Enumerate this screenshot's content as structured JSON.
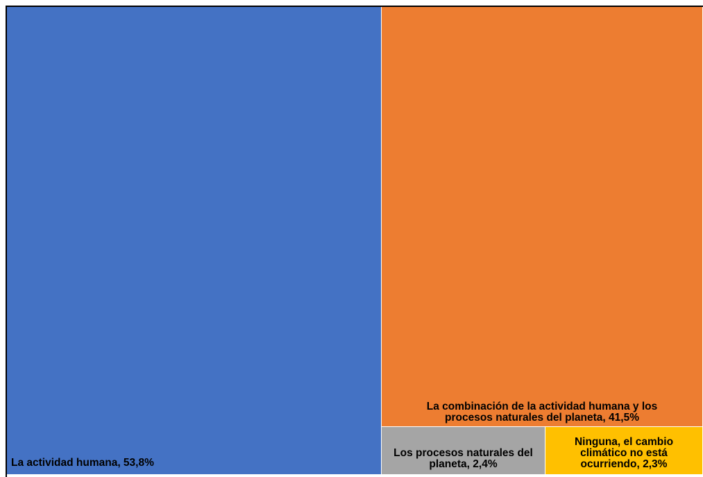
{
  "chart_data": {
    "type": "treemap",
    "items": [
      {
        "label": "La actividad humana",
        "value": 53.8,
        "value_text": "53,8%",
        "full_label": "La actividad humana, 53,8%",
        "color": "#4472C4"
      },
      {
        "label": "La combinación de la actividad humana y los procesos naturales del planeta",
        "value": 41.5,
        "value_text": "41,5%",
        "full_label": "La combinación de la actividad humana y los procesos naturales del planeta, 41,5%",
        "color": "#ED7D31"
      },
      {
        "label": "Los procesos naturales del planeta",
        "value": 2.4,
        "value_text": "2,4%",
        "full_label": "Los procesos naturales del planeta, 2,4%",
        "color": "#A5A5A5"
      },
      {
        "label": "Ninguna, el cambio climático no está ocurriendo",
        "value": 2.3,
        "value_text": "2,3%",
        "full_label": "Ninguna, el cambio climático no está ocurriendo, 2,3%",
        "color": "#FFC000"
      }
    ]
  }
}
